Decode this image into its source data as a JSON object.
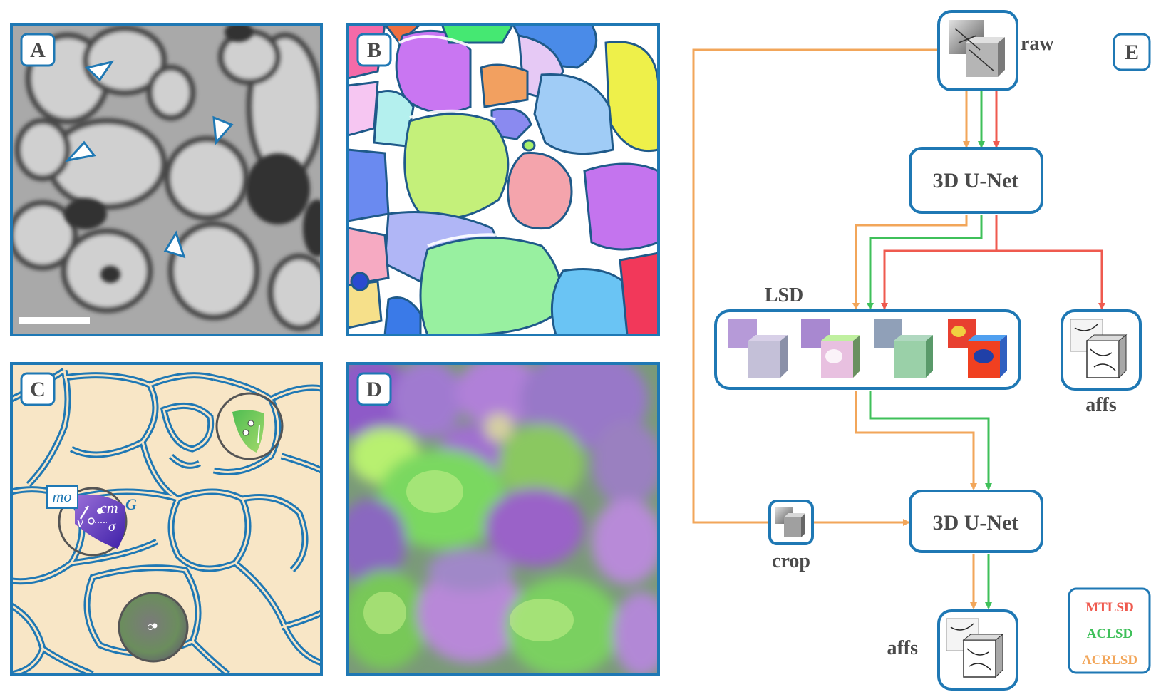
{
  "panels": {
    "a": {
      "label": "A"
    },
    "b": {
      "label": "B"
    },
    "c": {
      "label": "C",
      "annotations": {
        "mo": "mo",
        "cm": "cm",
        "g": "G",
        "v": "v",
        "sigma": "σ"
      }
    },
    "d": {
      "label": "D"
    },
    "e": {
      "label": "E"
    }
  },
  "diagram": {
    "raw_label": "raw",
    "unet_top_label": "3D U-Net",
    "lsd_label": "LSD",
    "affs_top_label": "affs",
    "crop_label": "crop",
    "unet_bottom_label": "3D U-Net",
    "affs_bottom_label": "affs"
  },
  "legend": {
    "items": [
      {
        "name": "MTLSD",
        "color": "#ef5a4f"
      },
      {
        "name": "ACLSD",
        "color": "#3fc05a"
      },
      {
        "name": "ACRLSD",
        "color": "#f2a65a"
      }
    ]
  },
  "colors": {
    "frame": "#1f78b4",
    "membrane": "#1f78b4",
    "cream": "#f8e6c6"
  }
}
